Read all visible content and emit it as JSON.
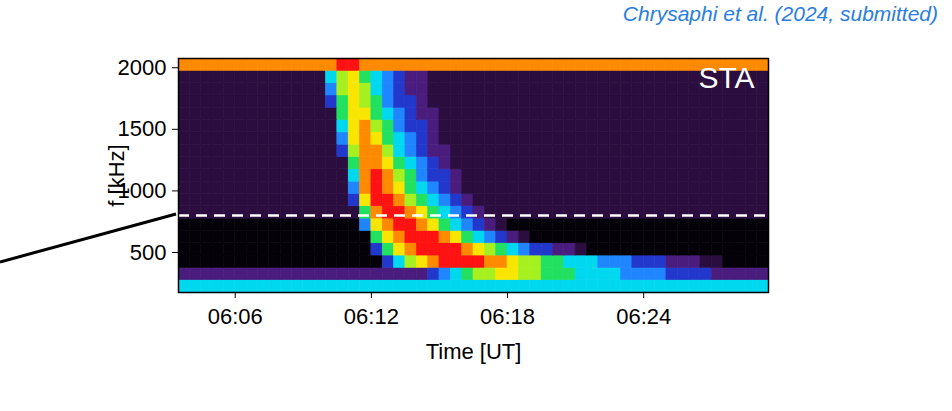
{
  "chart_data": {
    "type": "heatmap",
    "title": "STA",
    "source": "Chrysaphi et al. (2024, submitted)",
    "xlabel": "Time [UT]",
    "ylabel": "f [kHz]",
    "xlim": [
      "06:03:30",
      "06:29:30"
    ],
    "xticks": [
      "06:06",
      "06:12",
      "06:18",
      "06:24"
    ],
    "ylim": [
      175,
      2075
    ],
    "yticks": [
      500,
      1000,
      1500,
      2000
    ],
    "grid": false,
    "zlim": [
      0,
      10
    ],
    "reference_lines": [
      {
        "y": 800,
        "color": "white",
        "line_style": "dashed"
      }
    ],
    "x_bins": [
      "06:03:30",
      "06:04:00",
      "06:04:30",
      "06:05:00",
      "06:05:30",
      "06:06:00",
      "06:06:30",
      "06:07:00",
      "06:07:30",
      "06:08:00",
      "06:08:30",
      "06:09:00",
      "06:09:30",
      "06:10:00",
      "06:10:30",
      "06:11:00",
      "06:11:30",
      "06:12:00",
      "06:12:30",
      "06:13:00",
      "06:13:30",
      "06:14:00",
      "06:14:30",
      "06:15:00",
      "06:15:30",
      "06:16:00",
      "06:16:30",
      "06:17:00",
      "06:17:30",
      "06:18:00",
      "06:18:30",
      "06:19:00",
      "06:19:30",
      "06:20:00",
      "06:20:30",
      "06:21:00",
      "06:21:30",
      "06:22:00",
      "06:22:30",
      "06:23:00",
      "06:23:30",
      "06:24:00",
      "06:24:30",
      "06:25:00",
      "06:25:30",
      "06:26:00",
      "06:26:30",
      "06:27:00",
      "06:27:30",
      "06:28:00",
      "06:28:30",
      "06:29:00",
      "06:29:30"
    ],
    "y_bins": [
      175,
      275,
      375,
      475,
      575,
      675,
      775,
      875,
      975,
      1075,
      1175,
      1275,
      1375,
      1475,
      1575,
      1675,
      1775,
      1875,
      1975,
      2075
    ],
    "z": [
      [
        5,
        5,
        5,
        5,
        5,
        5,
        5,
        5,
        5,
        5,
        5,
        5,
        5,
        5,
        5,
        5,
        5,
        5,
        5,
        5,
        5,
        5,
        5,
        5,
        5,
        5,
        5,
        5,
        5,
        5,
        5,
        5,
        5,
        5,
        5,
        5,
        5,
        5,
        5,
        5,
        5,
        5,
        5,
        5,
        5,
        5,
        5,
        5,
        5,
        5,
        5,
        5
      ],
      [
        2,
        2,
        2,
        2,
        2,
        2,
        2,
        2,
        2,
        2,
        2,
        2,
        2,
        2,
        2,
        2,
        2,
        2,
        2,
        2,
        2,
        2,
        3,
        4,
        5,
        6,
        7,
        7,
        8,
        8,
        7,
        7,
        6,
        6,
        6,
        5,
        5,
        5,
        5,
        4,
        4,
        4,
        4,
        3,
        3,
        3,
        3,
        2,
        2,
        2,
        2,
        2
      ],
      [
        0,
        0,
        0,
        0,
        0,
        0,
        0,
        0,
        0,
        0,
        0,
        0,
        0,
        0,
        0,
        0,
        0,
        0,
        3,
        5,
        7,
        8,
        9,
        10,
        10,
        10,
        10,
        9,
        9,
        8,
        7,
        7,
        6,
        6,
        5,
        5,
        5,
        4,
        4,
        4,
        3,
        3,
        3,
        2,
        2,
        2,
        1,
        1,
        0,
        0,
        0,
        0
      ],
      [
        0,
        0,
        0,
        0,
        0,
        0,
        0,
        0,
        0,
        0,
        0,
        0,
        0,
        0,
        0,
        0,
        0,
        3,
        6,
        8,
        9,
        10,
        10,
        10,
        10,
        9,
        8,
        7,
        6,
        5,
        4,
        3,
        3,
        2,
        2,
        1,
        0,
        0,
        0,
        0,
        0,
        0,
        0,
        0,
        0,
        0,
        0,
        0,
        0,
        0,
        0,
        0
      ],
      [
        0,
        0,
        0,
        0,
        0,
        0,
        0,
        0,
        0,
        0,
        0,
        0,
        0,
        0,
        0,
        0,
        0,
        6,
        8,
        9,
        10,
        10,
        10,
        9,
        8,
        6,
        5,
        4,
        3,
        2,
        1,
        0,
        0,
        0,
        0,
        0,
        0,
        0,
        0,
        0,
        0,
        0,
        0,
        0,
        0,
        0,
        0,
        0,
        0,
        0,
        0,
        0
      ],
      [
        0,
        0,
        0,
        0,
        0,
        0,
        0,
        0,
        0,
        0,
        0,
        0,
        0,
        0,
        0,
        0,
        4,
        8,
        9,
        10,
        10,
        9,
        8,
        6,
        5,
        4,
        3,
        2,
        1,
        0,
        0,
        0,
        0,
        0,
        0,
        0,
        0,
        0,
        0,
        0,
        0,
        0,
        0,
        0,
        0,
        0,
        0,
        0,
        0,
        0,
        0,
        0
      ],
      [
        1,
        1,
        1,
        1,
        1,
        1,
        1,
        1,
        1,
        1,
        1,
        1,
        1,
        1,
        1,
        1,
        6,
        9,
        10,
        10,
        9,
        8,
        6,
        5,
        4,
        3,
        2,
        1,
        1,
        1,
        1,
        1,
        1,
        1,
        1,
        1,
        1,
        1,
        1,
        1,
        1,
        1,
        1,
        1,
        1,
        1,
        1,
        1,
        1,
        1,
        1,
        1
      ],
      [
        1,
        1,
        1,
        1,
        1,
        1,
        1,
        1,
        1,
        1,
        1,
        1,
        1,
        1,
        1,
        3,
        8,
        10,
        10,
        9,
        7,
        6,
        5,
        4,
        3,
        2,
        1,
        1,
        1,
        1,
        1,
        1,
        1,
        1,
        1,
        1,
        1,
        1,
        1,
        1,
        1,
        1,
        1,
        1,
        1,
        1,
        1,
        1,
        1,
        1,
        1,
        1
      ],
      [
        1,
        1,
        1,
        1,
        1,
        1,
        1,
        1,
        1,
        1,
        1,
        1,
        1,
        1,
        1,
        4,
        9,
        10,
        9,
        8,
        6,
        5,
        4,
        3,
        2,
        1,
        1,
        1,
        1,
        1,
        1,
        1,
        1,
        1,
        1,
        1,
        1,
        1,
        1,
        1,
        1,
        1,
        1,
        1,
        1,
        1,
        1,
        1,
        1,
        1,
        1,
        1
      ],
      [
        1,
        1,
        1,
        1,
        1,
        1,
        1,
        1,
        1,
        1,
        1,
        1,
        1,
        1,
        1,
        5,
        9,
        10,
        9,
        7,
        6,
        4,
        3,
        3,
        2,
        1,
        1,
        1,
        1,
        1,
        1,
        1,
        1,
        1,
        1,
        1,
        1,
        1,
        1,
        1,
        1,
        1,
        1,
        1,
        1,
        1,
        1,
        1,
        1,
        1,
        1,
        1
      ],
      [
        1,
        1,
        1,
        1,
        1,
        1,
        1,
        1,
        1,
        1,
        1,
        1,
        1,
        1,
        1,
        6,
        9,
        9,
        8,
        6,
        5,
        4,
        3,
        2,
        1,
        1,
        1,
        1,
        1,
        1,
        1,
        1,
        1,
        1,
        1,
        1,
        1,
        1,
        1,
        1,
        1,
        1,
        1,
        1,
        1,
        1,
        1,
        1,
        1,
        1,
        1,
        1
      ],
      [
        1,
        1,
        1,
        1,
        1,
        1,
        1,
        1,
        1,
        1,
        1,
        1,
        1,
        1,
        3,
        7,
        9,
        9,
        7,
        5,
        4,
        3,
        2,
        2,
        1,
        1,
        1,
        1,
        1,
        1,
        1,
        1,
        1,
        1,
        1,
        1,
        1,
        1,
        1,
        1,
        1,
        1,
        1,
        1,
        1,
        1,
        1,
        1,
        1,
        1,
        1,
        1
      ],
      [
        1,
        1,
        1,
        1,
        1,
        1,
        1,
        1,
        1,
        1,
        1,
        1,
        1,
        1,
        4,
        8,
        9,
        8,
        6,
        5,
        4,
        3,
        2,
        1,
        1,
        1,
        1,
        1,
        1,
        1,
        1,
        1,
        1,
        1,
        1,
        1,
        1,
        1,
        1,
        1,
        1,
        1,
        1,
        1,
        1,
        1,
        1,
        1,
        1,
        1,
        1,
        1
      ],
      [
        1,
        1,
        1,
        1,
        1,
        1,
        1,
        1,
        1,
        1,
        1,
        1,
        1,
        1,
        5,
        8,
        9,
        7,
        6,
        4,
        3,
        3,
        2,
        1,
        1,
        1,
        1,
        1,
        1,
        1,
        1,
        1,
        1,
        1,
        1,
        1,
        1,
        1,
        1,
        1,
        1,
        1,
        1,
        1,
        1,
        1,
        1,
        1,
        1,
        1,
        1,
        1
      ],
      [
        1,
        1,
        1,
        1,
        1,
        1,
        1,
        1,
        1,
        1,
        1,
        1,
        1,
        1,
        6,
        8,
        8,
        6,
        5,
        4,
        3,
        2,
        2,
        1,
        1,
        1,
        1,
        1,
        1,
        1,
        1,
        1,
        1,
        1,
        1,
        1,
        1,
        1,
        1,
        1,
        1,
        1,
        1,
        1,
        1,
        1,
        1,
        1,
        1,
        1,
        1,
        1
      ],
      [
        1,
        1,
        1,
        1,
        1,
        1,
        1,
        1,
        1,
        1,
        1,
        1,
        1,
        3,
        6,
        8,
        7,
        6,
        4,
        3,
        3,
        2,
        1,
        1,
        1,
        1,
        1,
        1,
        1,
        1,
        1,
        1,
        1,
        1,
        1,
        1,
        1,
        1,
        1,
        1,
        1,
        1,
        1,
        1,
        1,
        1,
        1,
        1,
        1,
        1,
        1,
        1
      ],
      [
        1,
        1,
        1,
        1,
        1,
        1,
        1,
        1,
        1,
        1,
        1,
        1,
        1,
        4,
        7,
        8,
        7,
        5,
        4,
        3,
        2,
        2,
        1,
        1,
        1,
        1,
        1,
        1,
        1,
        1,
        1,
        1,
        1,
        1,
        1,
        1,
        1,
        1,
        1,
        1,
        1,
        1,
        1,
        1,
        1,
        1,
        1,
        1,
        1,
        1,
        1,
        1
      ],
      [
        1,
        1,
        1,
        1,
        1,
        1,
        1,
        1,
        1,
        1,
        1,
        1,
        1,
        5,
        7,
        8,
        6,
        5,
        4,
        3,
        2,
        2,
        1,
        1,
        1,
        1,
        1,
        1,
        1,
        1,
        1,
        1,
        1,
        1,
        1,
        1,
        1,
        1,
        1,
        1,
        1,
        1,
        1,
        1,
        1,
        1,
        1,
        1,
        1,
        1,
        1,
        1
      ],
      [
        9,
        9,
        9,
        9,
        9,
        9,
        9,
        9,
        9,
        9,
        9,
        9,
        9,
        9,
        10,
        10,
        9,
        9,
        9,
        9,
        9,
        9,
        9,
        9,
        9,
        9,
        9,
        9,
        9,
        9,
        9,
        9,
        9,
        9,
        9,
        9,
        9,
        9,
        9,
        9,
        9,
        9,
        9,
        9,
        9,
        9,
        9,
        9,
        9,
        9,
        9,
        9
      ]
    ]
  }
}
